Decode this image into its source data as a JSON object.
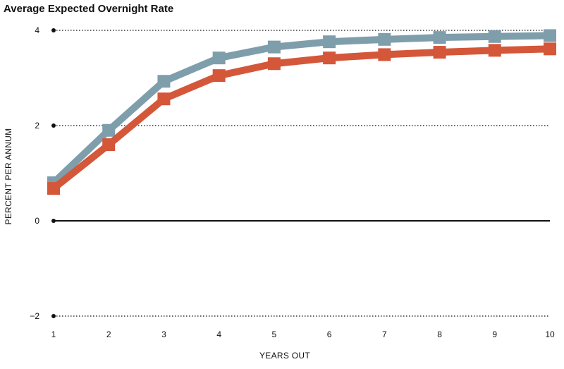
{
  "chart_data": {
    "type": "line",
    "title": "Average Expected Overnight Rate",
    "xlabel": "YEARS OUT",
    "ylabel": "PERCENT PER ANNUM",
    "x": [
      1,
      2,
      3,
      4,
      5,
      6,
      7,
      8,
      9,
      10
    ],
    "ylim": [
      -2,
      4
    ],
    "yticks": [
      -2,
      0,
      2,
      4
    ],
    "xticks": [
      1,
      2,
      3,
      4,
      5,
      6,
      7,
      8,
      9,
      10
    ],
    "grid": "horizontal dotted",
    "series": [
      {
        "color": "#7f9eac",
        "values": [
          0.8,
          1.9,
          2.93,
          3.42,
          3.65,
          3.76,
          3.81,
          3.85,
          3.87,
          3.89
        ]
      },
      {
        "color": "#d4573a",
        "values": [
          0.68,
          1.6,
          2.56,
          3.05,
          3.3,
          3.42,
          3.49,
          3.54,
          3.58,
          3.61
        ]
      }
    ]
  }
}
